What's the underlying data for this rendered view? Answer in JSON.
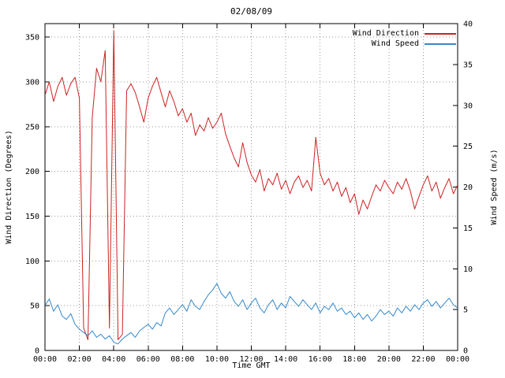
{
  "page": {
    "background": "#ffffff"
  },
  "chart_data": {
    "type": "line",
    "title": "02/08/09",
    "xlabel": "Time GMT",
    "ylabel_left": "Wind Direction (Degrees)",
    "ylabel_right": "Wind Speed (m/s)",
    "grid": true,
    "grid_style": "dotted",
    "grid_color": "#999999",
    "x_range_hours": [
      0,
      24
    ],
    "x_tick_hours": [
      0,
      2,
      4,
      6,
      8,
      10,
      12,
      14,
      16,
      18,
      20,
      22,
      24
    ],
    "x_tick_labels": [
      "00:00",
      "02:00",
      "04:00",
      "06:00",
      "08:00",
      "10:00",
      "12:00",
      "14:00",
      "16:00",
      "18:00",
      "20:00",
      "22:00",
      "00:00"
    ],
    "y_left_range": [
      0,
      365
    ],
    "y_left_ticks": [
      0,
      50,
      100,
      150,
      200,
      250,
      300,
      350
    ],
    "y_right_range": [
      0,
      40
    ],
    "y_right_ticks": [
      0,
      5,
      10,
      15,
      20,
      25,
      30,
      35,
      40
    ],
    "legend": {
      "position": "top-right-inside",
      "entries": [
        {
          "label": "Wind Direction",
          "color": "#cc2222"
        },
        {
          "label": "Wind Speed",
          "color": "#3388cc"
        }
      ]
    },
    "series": [
      {
        "name": "Wind Direction",
        "axis": "left",
        "units": "degrees",
        "color": "#cc2222",
        "x_start_hours": 0,
        "x_step_hours": 0.25,
        "values": [
          285,
          300,
          278,
          295,
          305,
          285,
          298,
          305,
          282,
          25,
          12,
          260,
          315,
          300,
          335,
          25,
          357,
          12,
          18,
          290,
          298,
          288,
          272,
          255,
          282,
          295,
          305,
          288,
          272,
          290,
          278,
          262,
          270,
          255,
          265,
          240,
          252,
          245,
          260,
          248,
          255,
          265,
          242,
          228,
          215,
          205,
          232,
          210,
          196,
          188,
          202,
          178,
          192,
          185,
          198,
          180,
          190,
          175,
          188,
          195,
          182,
          190,
          178,
          238,
          198,
          185,
          192,
          178,
          188,
          172,
          182,
          165,
          175,
          152,
          168,
          158,
          172,
          185,
          178,
          190,
          182,
          175,
          188,
          180,
          192,
          178,
          158,
          172,
          185,
          195,
          178,
          188,
          170,
          182,
          192,
          175,
          185
        ]
      },
      {
        "name": "Wind Speed",
        "axis": "right",
        "units": "m/s",
        "color": "#3388cc",
        "x_start_hours": 0,
        "x_step_hours": 0.25,
        "values": [
          5.5,
          6.3,
          4.8,
          5.6,
          4.2,
          3.8,
          4.5,
          3.2,
          2.6,
          2.2,
          1.8,
          2.4,
          1.6,
          2.0,
          1.4,
          1.8,
          1.0,
          0.8,
          1.4,
          1.8,
          2.2,
          1.6,
          2.4,
          2.8,
          3.2,
          2.6,
          3.4,
          3.0,
          4.6,
          5.2,
          4.4,
          5.0,
          5.6,
          4.8,
          6.2,
          5.4,
          5.0,
          6.0,
          6.8,
          7.4,
          8.2,
          7.0,
          6.4,
          7.2,
          6.0,
          5.4,
          6.2,
          5.0,
          5.8,
          6.4,
          5.2,
          4.6,
          5.6,
          6.2,
          5.0,
          5.8,
          5.2,
          6.6,
          6.0,
          5.4,
          6.2,
          5.6,
          5.0,
          5.8,
          4.6,
          5.4,
          5.0,
          5.8,
          4.8,
          5.2,
          4.4,
          4.8,
          4.0,
          4.6,
          3.8,
          4.4,
          3.6,
          4.2,
          5.0,
          4.4,
          4.8,
          4.2,
          5.2,
          4.6,
          5.4,
          4.8,
          5.6,
          5.0,
          5.8,
          6.2,
          5.4,
          6.0,
          5.2,
          5.8,
          6.4,
          5.6,
          5.2
        ]
      }
    ]
  }
}
